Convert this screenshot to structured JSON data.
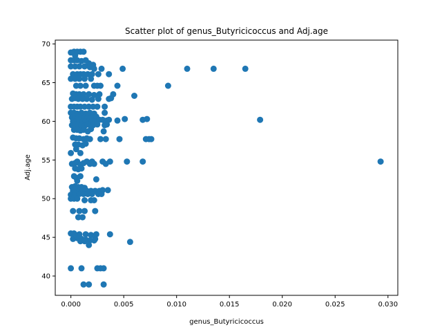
{
  "chart_data": {
    "type": "scatter",
    "title": "Scatter plot of genus_Butyricicoccus and Adj.age",
    "xlabel": "genus_Butyricicoccus",
    "ylabel": "Adj.age",
    "xlim": [
      -0.00148,
      0.03093
    ],
    "ylim": [
      37.5,
      70.5
    ],
    "xticks": [
      0.0,
      0.005,
      0.01,
      0.015,
      0.02,
      0.025,
      0.03
    ],
    "xtick_labels": [
      "0.000",
      "0.005",
      "0.010",
      "0.015",
      "0.020",
      "0.025",
      "0.030"
    ],
    "yticks": [
      40,
      45,
      50,
      55,
      60,
      65,
      70
    ],
    "ytick_labels": [
      "40",
      "45",
      "50",
      "55",
      "60",
      "65",
      "70"
    ],
    "grid": false,
    "marker_color": "#1f77b4",
    "points": [
      [
        0.0,
        68.9
      ],
      [
        0.0003,
        69.0
      ],
      [
        0.0006,
        69.0
      ],
      [
        0.0009,
        69.0
      ],
      [
        0.0012,
        69.0
      ],
      [
        0.0004,
        68.5
      ],
      [
        0.0,
        67.9
      ],
      [
        0.0003,
        67.9
      ],
      [
        0.0006,
        67.9
      ],
      [
        0.001,
        67.8
      ],
      [
        0.0014,
        67.9
      ],
      [
        0.0017,
        67.5
      ],
      [
        0.0021,
        67.3
      ],
      [
        0.0,
        67.1
      ],
      [
        0.0004,
        67.1
      ],
      [
        0.0008,
        67.1
      ],
      [
        0.0013,
        67.1
      ],
      [
        0.0018,
        67.0
      ],
      [
        0.0022,
        66.8
      ],
      [
        0.0029,
        66.8
      ],
      [
        0.0049,
        66.8
      ],
      [
        0.011,
        66.8
      ],
      [
        0.0135,
        66.8
      ],
      [
        0.0165,
        66.8
      ],
      [
        0.0002,
        66.1
      ],
      [
        0.0006,
        66.1
      ],
      [
        0.0009,
        66.1
      ],
      [
        0.0012,
        66.1
      ],
      [
        0.0016,
        66.1
      ],
      [
        0.002,
        66.1
      ],
      [
        0.0026,
        66.1
      ],
      [
        0.0036,
        66.1
      ],
      [
        0.0,
        65.5
      ],
      [
        0.0004,
        65.5
      ],
      [
        0.0008,
        65.5
      ],
      [
        0.0013,
        65.5
      ],
      [
        0.0019,
        65.5
      ],
      [
        0.0005,
        64.6
      ],
      [
        0.0009,
        64.6
      ],
      [
        0.0014,
        64.6
      ],
      [
        0.0022,
        64.6
      ],
      [
        0.0025,
        64.6
      ],
      [
        0.0028,
        64.6
      ],
      [
        0.0044,
        64.6
      ],
      [
        0.0092,
        64.6
      ],
      [
        0.0002,
        63.6
      ],
      [
        0.0005,
        63.5
      ],
      [
        0.0008,
        63.5
      ],
      [
        0.0012,
        63.5
      ],
      [
        0.0017,
        63.5
      ],
      [
        0.0022,
        63.4
      ],
      [
        0.0027,
        63.5
      ],
      [
        0.004,
        63.5
      ],
      [
        0.006,
        63.3
      ],
      [
        0.0001,
        62.9
      ],
      [
        0.0004,
        63.0
      ],
      [
        0.0007,
        62.9
      ],
      [
        0.0011,
        62.9
      ],
      [
        0.0015,
        62.9
      ],
      [
        0.002,
        62.8
      ],
      [
        0.0026,
        62.9
      ],
      [
        0.0036,
        62.9
      ],
      [
        0.0038,
        63.0
      ],
      [
        0.0,
        61.9
      ],
      [
        0.0003,
        61.9
      ],
      [
        0.0006,
        61.9
      ],
      [
        0.0009,
        61.9
      ],
      [
        0.0013,
        61.9
      ],
      [
        0.0017,
        61.9
      ],
      [
        0.0021,
        61.9
      ],
      [
        0.0025,
        61.9
      ],
      [
        0.0032,
        61.9
      ],
      [
        0.0,
        61.1
      ],
      [
        0.0003,
        61.1
      ],
      [
        0.0006,
        61.0
      ],
      [
        0.001,
        61.1
      ],
      [
        0.0014,
        61.0
      ],
      [
        0.0018,
        61.1
      ],
      [
        0.0022,
        61.0
      ],
      [
        0.0032,
        61.1
      ],
      [
        0.0001,
        60.5
      ],
      [
        0.0004,
        60.6
      ],
      [
        0.0007,
        60.5
      ],
      [
        0.001,
        60.6
      ],
      [
        0.0013,
        60.5
      ],
      [
        0.0016,
        60.6
      ],
      [
        0.0019,
        60.4
      ],
      [
        0.0024,
        60.6
      ],
      [
        0.0002,
        60.0
      ],
      [
        0.0005,
        60.0
      ],
      [
        0.0008,
        60.1
      ],
      [
        0.0011,
        60.0
      ],
      [
        0.0014,
        60.0
      ],
      [
        0.0017,
        60.0
      ],
      [
        0.002,
        60.1
      ],
      [
        0.0023,
        60.0
      ],
      [
        0.0027,
        60.2
      ],
      [
        0.003,
        60.2
      ],
      [
        0.0034,
        60.1
      ],
      [
        0.0036,
        60.2
      ],
      [
        0.0044,
        60.1
      ],
      [
        0.0051,
        60.3
      ],
      [
        0.0068,
        60.2
      ],
      [
        0.0072,
        60.3
      ],
      [
        0.0179,
        60.2
      ],
      [
        0.0001,
        59.5
      ],
      [
        0.0004,
        59.6
      ],
      [
        0.0007,
        59.5
      ],
      [
        0.001,
        59.5
      ],
      [
        0.0013,
        59.4
      ],
      [
        0.0016,
        59.6
      ],
      [
        0.0021,
        59.5
      ],
      [
        0.0025,
        59.6
      ],
      [
        0.0032,
        59.5
      ],
      [
        0.0034,
        59.6
      ],
      [
        0.0003,
        58.9
      ],
      [
        0.0006,
        58.9
      ],
      [
        0.0009,
        58.8
      ],
      [
        0.0012,
        58.9
      ],
      [
        0.0016,
        58.7
      ],
      [
        0.0019,
        59.0
      ],
      [
        0.0031,
        58.7
      ],
      [
        0.0002,
        57.9
      ],
      [
        0.0005,
        57.8
      ],
      [
        0.0008,
        57.8
      ],
      [
        0.0012,
        57.7
      ],
      [
        0.0015,
        57.8
      ],
      [
        0.0018,
        57.7
      ],
      [
        0.0028,
        57.7
      ],
      [
        0.0033,
        57.7
      ],
      [
        0.0046,
        57.7
      ],
      [
        0.0071,
        57.7
      ],
      [
        0.0074,
        57.7
      ],
      [
        0.0076,
        57.7
      ],
      [
        0.0004,
        57.0
      ],
      [
        0.0007,
        57.0
      ],
      [
        0.0011,
        56.9
      ],
      [
        0.0014,
        57.1
      ],
      [
        0.0005,
        56.4
      ],
      [
        0.0009,
        55.9
      ],
      [
        0.0,
        55.9
      ],
      [
        0.0001,
        54.5
      ],
      [
        0.0004,
        54.6
      ],
      [
        0.0006,
        54.8
      ],
      [
        0.0009,
        54.4
      ],
      [
        0.0012,
        54.6
      ],
      [
        0.0015,
        54.8
      ],
      [
        0.0018,
        54.5
      ],
      [
        0.002,
        54.8
      ],
      [
        0.0022,
        54.5
      ],
      [
        0.003,
        54.8
      ],
      [
        0.0033,
        54.5
      ],
      [
        0.0037,
        54.8
      ],
      [
        0.0053,
        54.8
      ],
      [
        0.0068,
        54.8
      ],
      [
        0.0293,
        54.8
      ],
      [
        0.0004,
        53.9
      ],
      [
        0.0007,
        53.8
      ],
      [
        0.001,
        53.9
      ],
      [
        0.0003,
        52.9
      ],
      [
        0.0005,
        52.7
      ],
      [
        0.0009,
        52.9
      ],
      [
        0.0024,
        52.5
      ],
      [
        0.0006,
        52.3
      ],
      [
        0.0001,
        51.5
      ],
      [
        0.0004,
        51.6
      ],
      [
        0.0007,
        51.5
      ],
      [
        0.001,
        51.5
      ],
      [
        0.0013,
        51.4
      ],
      [
        0.0002,
        51.0
      ],
      [
        0.0005,
        51.1
      ],
      [
        0.0008,
        51.0
      ],
      [
        0.0011,
        51.1
      ],
      [
        0.0015,
        51.0
      ],
      [
        0.0019,
        51.0
      ],
      [
        0.0023,
        51.0
      ],
      [
        0.0027,
        51.0
      ],
      [
        0.003,
        51.1
      ],
      [
        0.0035,
        51.1
      ],
      [
        0.0,
        50.5
      ],
      [
        0.0004,
        50.5
      ],
      [
        0.0008,
        50.6
      ],
      [
        0.0012,
        50.6
      ],
      [
        0.0016,
        50.6
      ],
      [
        0.002,
        50.6
      ],
      [
        0.0026,
        50.6
      ],
      [
        0.0029,
        50.6
      ],
      [
        0.0,
        50.0
      ],
      [
        0.0003,
        50.0
      ],
      [
        0.0006,
        50.0
      ],
      [
        0.0013,
        49.8
      ],
      [
        0.0019,
        49.8
      ],
      [
        0.0022,
        49.8
      ],
      [
        0.0002,
        48.4
      ],
      [
        0.0008,
        48.4
      ],
      [
        0.0013,
        48.4
      ],
      [
        0.0023,
        48.4
      ],
      [
        0.0007,
        47.6
      ],
      [
        0.0011,
        47.6
      ],
      [
        0.0,
        45.5
      ],
      [
        0.0003,
        45.5
      ],
      [
        0.0008,
        45.4
      ],
      [
        0.0014,
        45.4
      ],
      [
        0.0019,
        45.3
      ],
      [
        0.0024,
        45.4
      ],
      [
        0.0037,
        45.4
      ],
      [
        0.0002,
        44.8
      ],
      [
        0.0006,
        44.9
      ],
      [
        0.001,
        44.8
      ],
      [
        0.0014,
        44.7
      ],
      [
        0.0018,
        44.6
      ],
      [
        0.0023,
        44.8
      ],
      [
        0.0009,
        44.5
      ],
      [
        0.0013,
        44.5
      ],
      [
        0.0017,
        44.0
      ],
      [
        0.0022,
        44.6
      ],
      [
        0.0056,
        44.4
      ],
      [
        0.0,
        41.0
      ],
      [
        0.001,
        41.0
      ],
      [
        0.0025,
        41.0
      ],
      [
        0.0028,
        41.0
      ],
      [
        0.0031,
        41.0
      ],
      [
        0.0012,
        38.9
      ],
      [
        0.0017,
        38.9
      ],
      [
        0.0031,
        38.9
      ]
    ]
  }
}
